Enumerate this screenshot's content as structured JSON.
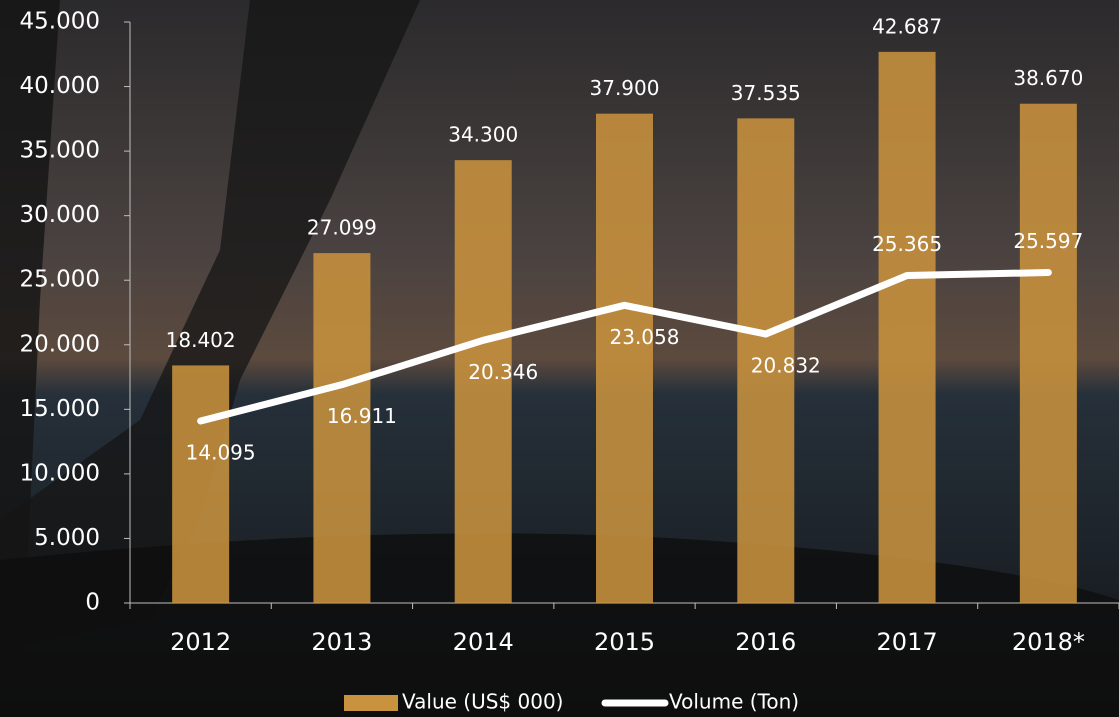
{
  "chart_data": {
    "type": "bar",
    "categories": [
      "2012",
      "2013",
      "2014",
      "2015",
      "2016",
      "2017",
      "2018*"
    ],
    "series": [
      {
        "name": "Value (US$ 000)",
        "type": "bar",
        "color": "#c8923e",
        "values": [
          18402,
          27099,
          34300,
          37900,
          37535,
          42687,
          38670
        ],
        "value_labels": [
          "18.402",
          "27.099",
          "34.300",
          "37.900",
          "37.535",
          "42.687",
          "38.670"
        ]
      },
      {
        "name": "Volume (Ton)",
        "type": "line",
        "color": "#ffffff",
        "values": [
          14095,
          16911,
          20346,
          23058,
          20832,
          25365,
          25597
        ],
        "value_labels": [
          "14.095",
          "16.911",
          "20.346",
          "23.058",
          "20.832",
          "25.365",
          "25.597"
        ]
      }
    ],
    "ylim": [
      0,
      45000
    ],
    "yticks": [
      0,
      {
        "value": 5000,
        "label": "5.000"
      },
      {
        "value": 10000,
        "label": "10.000"
      },
      {
        "value": 15000,
        "label": "15.000"
      },
      {
        "value": 20000,
        "label": "20.000"
      },
      {
        "value": 25000,
        "label": "25.000"
      },
      {
        "value": 30000,
        "label": "30.000"
      },
      {
        "value": 35000,
        "label": "35.000"
      },
      {
        "value": 40000,
        "label": "40.000"
      },
      {
        "value": 45000,
        "label": "45.000"
      }
    ],
    "legend": "bottom"
  }
}
